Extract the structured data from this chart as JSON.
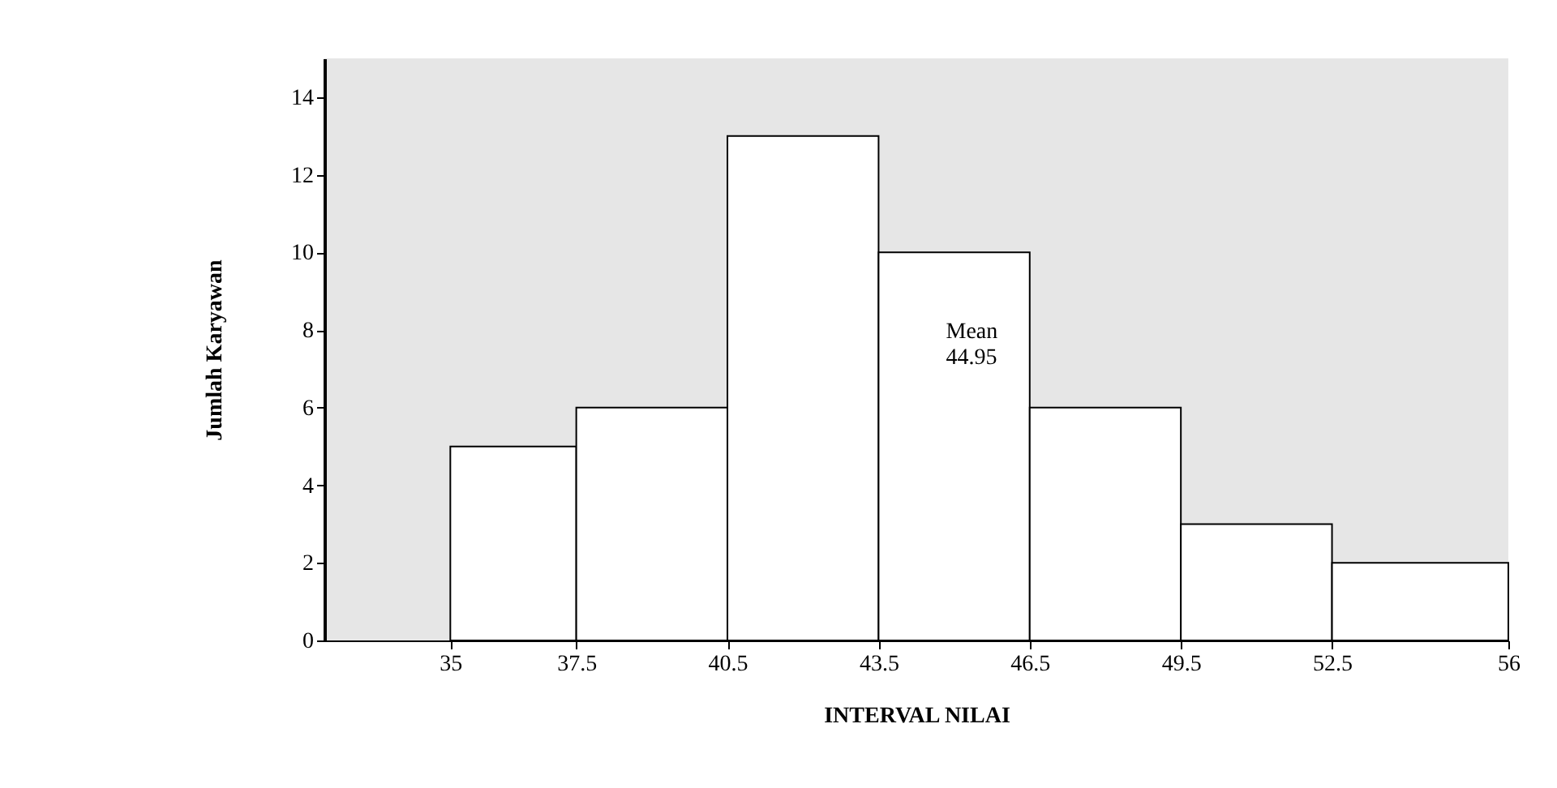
{
  "chart_data": {
    "type": "histogram",
    "xlabel": "INTERVAL NILAI",
    "ylabel": "Jumlah Karyawan",
    "bins": [
      35,
      37.5,
      40.5,
      43.5,
      46.5,
      49.5,
      52.5,
      56
    ],
    "values": [
      5,
      6,
      13,
      10,
      6,
      3,
      2
    ],
    "color": "#ffffff",
    "xlim": [
      32.5,
      56
    ],
    "xticks": [
      35,
      37.5,
      40.5,
      43.5,
      46.5,
      49.5,
      52.5,
      56
    ],
    "ylim": [
      0,
      15
    ],
    "yticks": [
      0,
      2,
      4,
      6,
      8,
      10,
      12,
      14
    ],
    "annotations": [
      "Mean\n44.95"
    ],
    "grid": false
  }
}
